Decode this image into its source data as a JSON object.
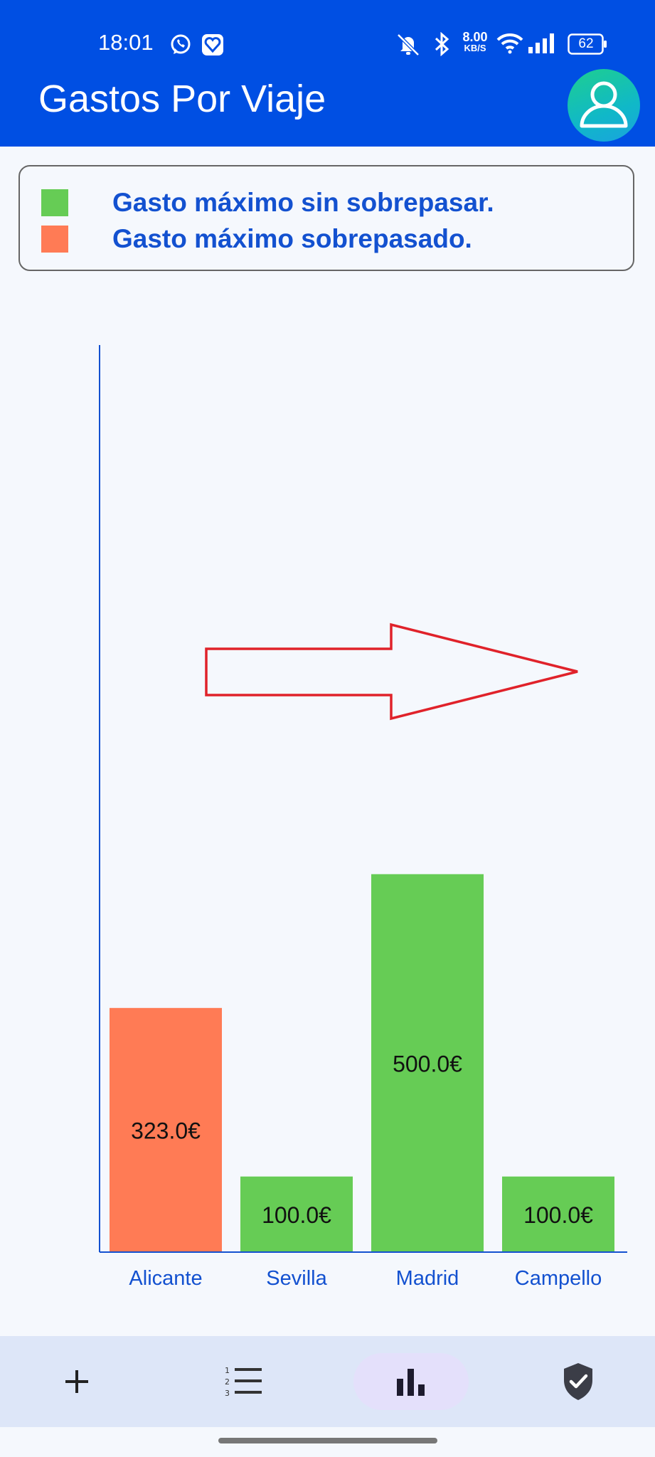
{
  "status_bar": {
    "time": "18:01",
    "net_speed_value": "8.00",
    "net_speed_unit": "KB/S",
    "battery": "62",
    "icons": [
      "whatsapp-icon",
      "heart-app-icon",
      "mute-icon",
      "bluetooth-icon",
      "wifi-icon",
      "signal-icon",
      "battery-icon"
    ]
  },
  "app_bar": {
    "title": "Gastos Por Viaje",
    "avatar_icon": "user-icon"
  },
  "legend": {
    "items": [
      {
        "label": "Gasto máximo sin sobrepasar.",
        "color": "#66cc55"
      },
      {
        "label": "Gasto máximo sobrepasado.",
        "color": "#ff7b55"
      }
    ]
  },
  "chart_data": {
    "type": "bar",
    "categories": [
      "Alicante",
      "Sevilla",
      "Madrid",
      "Campello"
    ],
    "values": [
      323.0,
      100.0,
      500.0,
      100.0
    ],
    "value_labels": [
      "323.0€",
      "100.0€",
      "500.0€",
      "100.0€"
    ],
    "colors": [
      "#ff7b55",
      "#66cc55",
      "#66cc55",
      "#66cc55"
    ],
    "title": "",
    "xlabel": "",
    "ylabel": "",
    "ylim": [
      0,
      1200
    ],
    "grid": false,
    "axis_color": "#1351d0",
    "label_color": "#1351d0"
  },
  "annotation": {
    "type": "arrow",
    "direction": "right",
    "color": "#e0222a"
  },
  "bottom_nav": {
    "items": [
      {
        "icon": "plus-icon",
        "name": "nav-add"
      },
      {
        "icon": "list-icon",
        "name": "nav-list"
      },
      {
        "icon": "bar-chart-icon",
        "name": "nav-chart",
        "selected": true
      },
      {
        "icon": "shield-check-icon",
        "name": "nav-shield"
      }
    ]
  }
}
